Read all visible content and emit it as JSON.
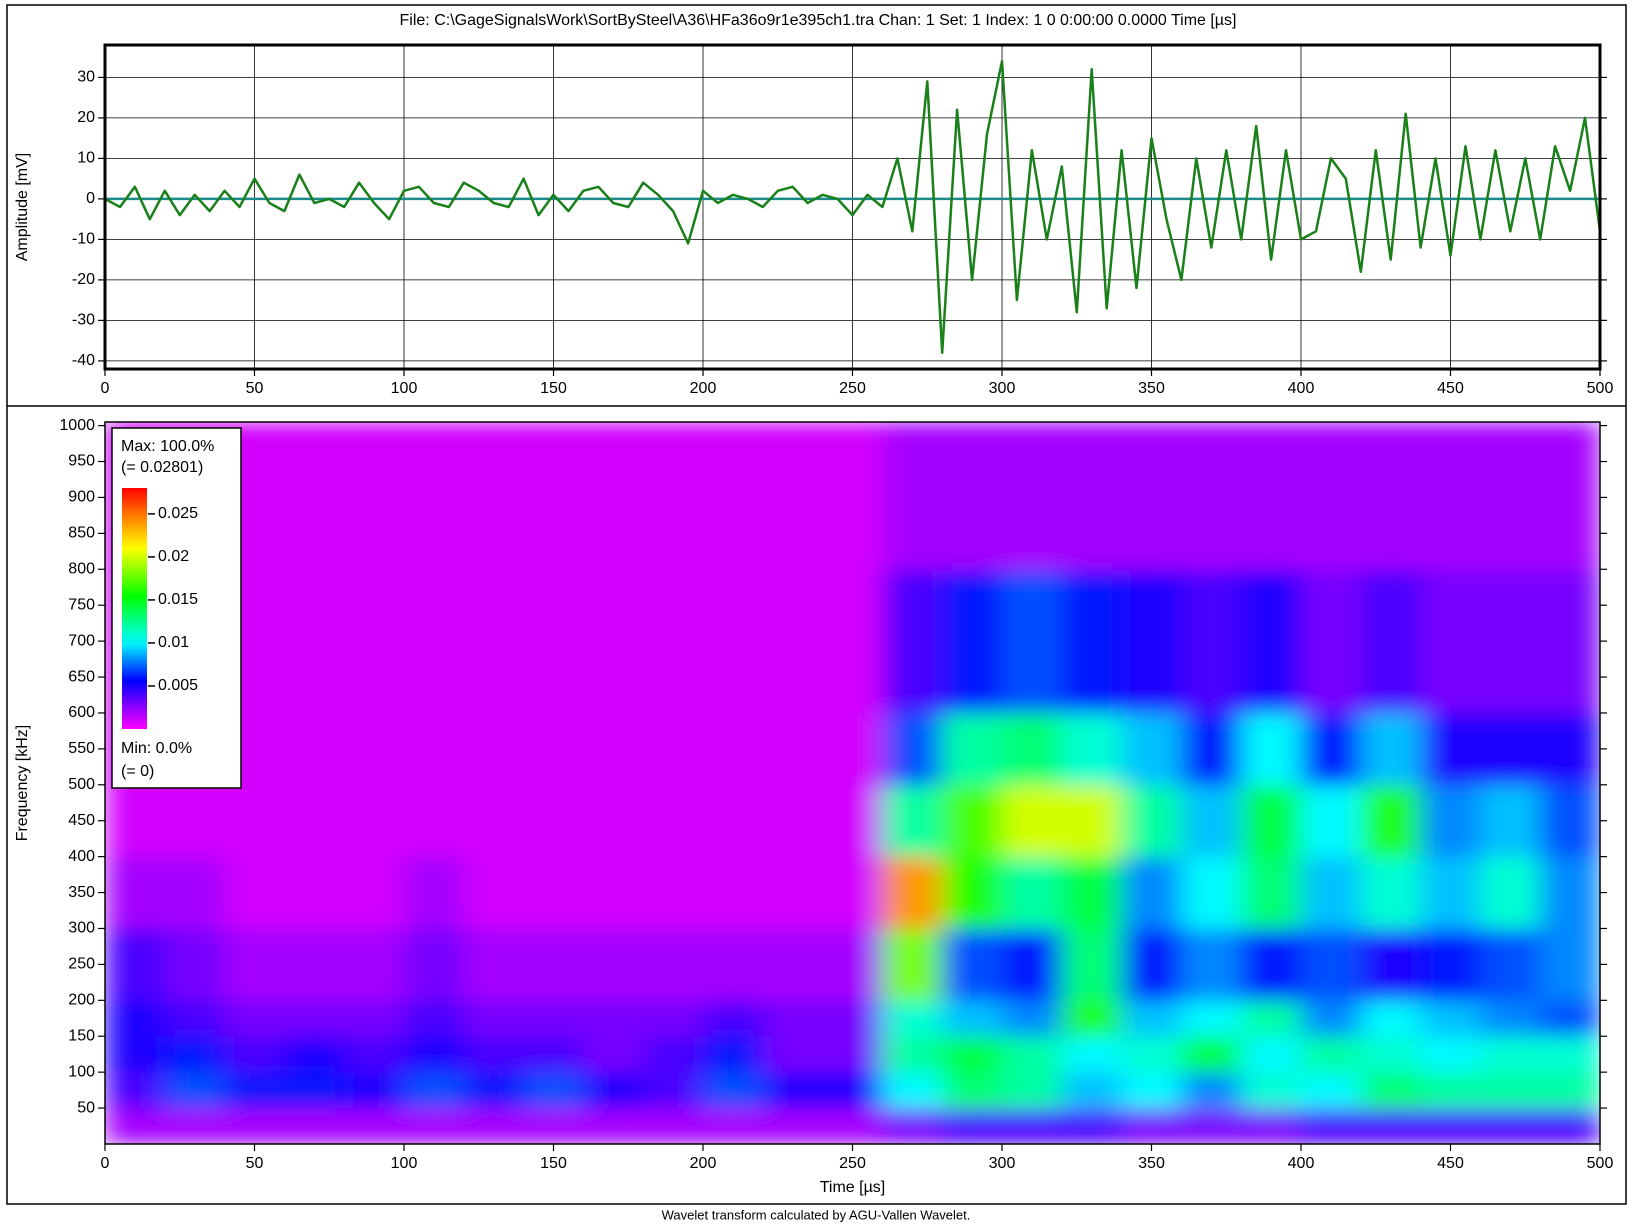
{
  "chart_data": [
    {
      "type": "line",
      "title": "File: C:\\GageSignalsWork\\SortBySteel\\A36\\HFa36o9r1e395ch1.tra  Chan: 1  Set: 1  Index: 1   0   0:00:00   0.0000  Time [µs]",
      "y_label": "Amplitude [mV]",
      "xlim": [
        0,
        500
      ],
      "ylim": [
        -42,
        38
      ],
      "xticks": [
        0,
        50,
        100,
        150,
        200,
        250,
        300,
        350,
        400,
        450,
        500
      ],
      "yticks": [
        -40,
        -30,
        -20,
        -10,
        0,
        10,
        20,
        30
      ],
      "grid": true,
      "color": "#1a801a",
      "x": [
        0,
        5,
        10,
        15,
        20,
        25,
        30,
        35,
        40,
        45,
        50,
        55,
        60,
        65,
        70,
        75,
        80,
        85,
        90,
        95,
        100,
        105,
        110,
        115,
        120,
        125,
        130,
        135,
        140,
        145,
        150,
        155,
        160,
        165,
        170,
        175,
        180,
        185,
        190,
        195,
        200,
        205,
        210,
        215,
        220,
        225,
        230,
        235,
        240,
        245,
        250,
        255,
        260,
        265,
        270,
        275,
        280,
        285,
        290,
        295,
        300,
        305,
        310,
        315,
        320,
        325,
        330,
        335,
        340,
        345,
        350,
        355,
        360,
        365,
        370,
        375,
        380,
        385,
        390,
        395,
        400,
        405,
        410,
        415,
        420,
        425,
        430,
        435,
        440,
        445,
        450,
        455,
        460,
        465,
        470,
        475,
        480,
        485,
        490,
        495,
        500
      ],
      "values": [
        0,
        -2,
        3,
        -5,
        2,
        -4,
        1,
        -3,
        2,
        -2,
        5,
        -1,
        -3,
        6,
        -1,
        0,
        -2,
        4,
        -1,
        -5,
        2,
        3,
        -1,
        -2,
        4,
        2,
        -1,
        -2,
        5,
        -4,
        1,
        -3,
        2,
        3,
        -1,
        -2,
        4,
        1,
        -3,
        -11,
        2,
        -1,
        1,
        0,
        -2,
        2,
        3,
        -1,
        1,
        0,
        -4,
        1,
        -2,
        10,
        -8,
        29,
        -38,
        22,
        -20,
        16,
        34,
        -25,
        12,
        -10,
        8,
        -28,
        32,
        -27,
        12,
        -22,
        15,
        -5,
        -20,
        10,
        -12,
        12,
        -10,
        18,
        -15,
        12,
        -10,
        -8,
        10,
        5,
        -18,
        12,
        -15,
        21,
        -12,
        10,
        -14,
        13,
        -10,
        12,
        -8,
        10,
        -10,
        13,
        2,
        20,
        -8
      ]
    },
    {
      "type": "heatmap",
      "x_label": "Time [µs]",
      "y_label": "Frequency [kHz]",
      "xlim": [
        0,
        500
      ],
      "ylim": [
        0,
        1005
      ],
      "xticks": [
        0,
        50,
        100,
        150,
        200,
        250,
        300,
        350,
        400,
        450,
        500
      ],
      "yticks": [
        50,
        100,
        150,
        200,
        250,
        300,
        350,
        400,
        450,
        500,
        550,
        600,
        650,
        700,
        750,
        800,
        850,
        900,
        950,
        1000
      ],
      "x_bins": [
        0,
        20,
        40,
        60,
        80,
        100,
        120,
        140,
        160,
        180,
        200,
        220,
        240,
        260,
        280,
        300,
        320,
        340,
        360,
        380,
        400,
        420,
        440,
        460,
        480,
        500
      ],
      "y_bins": [
        0,
        50,
        100,
        150,
        200,
        300,
        400,
        500,
        600,
        800,
        1005
      ],
      "z": [
        [
          0.002,
          0.002,
          0.002,
          0.002,
          0.002,
          0.002,
          0.002,
          0.002,
          0.002,
          0.002,
          0.002,
          0.002,
          0.002,
          0.003,
          0.004,
          0.004,
          0.004,
          0.003,
          0.003,
          0.003,
          0.004,
          0.004,
          0.004,
          0.004,
          0.004
        ],
        [
          0.004,
          0.007,
          0.006,
          0.006,
          0.005,
          0.007,
          0.006,
          0.007,
          0.005,
          0.004,
          0.007,
          0.005,
          0.005,
          0.01,
          0.013,
          0.012,
          0.009,
          0.01,
          0.008,
          0.011,
          0.01,
          0.013,
          0.012,
          0.012,
          0.012
        ],
        [
          0.005,
          0.006,
          0.004,
          0.005,
          0.004,
          0.005,
          0.004,
          0.004,
          0.003,
          0.004,
          0.006,
          0.003,
          0.003,
          0.012,
          0.014,
          0.012,
          0.01,
          0.011,
          0.014,
          0.01,
          0.012,
          0.011,
          0.01,
          0.011,
          0.011
        ],
        [
          0.005,
          0.004,
          0.003,
          0.003,
          0.003,
          0.004,
          0.003,
          0.003,
          0.003,
          0.003,
          0.004,
          0.003,
          0.003,
          0.011,
          0.009,
          0.008,
          0.016,
          0.009,
          0.01,
          0.012,
          0.008,
          0.01,
          0.009,
          0.008,
          0.007
        ],
        [
          0.004,
          0.003,
          0.002,
          0.002,
          0.002,
          0.003,
          0.002,
          0.002,
          0.002,
          0.002,
          0.002,
          0.002,
          0.002,
          0.018,
          0.007,
          0.006,
          0.013,
          0.006,
          0.008,
          0.006,
          0.007,
          0.005,
          0.006,
          0.007,
          0.008
        ],
        [
          0.002,
          0.002,
          0.001,
          0.001,
          0.001,
          0.002,
          0.001,
          0.001,
          0.001,
          0.001,
          0.001,
          0.001,
          0.001,
          0.024,
          0.016,
          0.012,
          0.014,
          0.008,
          0.01,
          0.013,
          0.009,
          0.011,
          0.009,
          0.011,
          0.008
        ],
        [
          0.001,
          0.001,
          0.001,
          0.001,
          0.001,
          0.001,
          0.001,
          0.001,
          0.001,
          0.001,
          0.001,
          0.001,
          0.001,
          0.012,
          0.017,
          0.02,
          0.02,
          0.012,
          0.009,
          0.014,
          0.01,
          0.016,
          0.008,
          0.009,
          0.007
        ],
        [
          0.001,
          0.001,
          0.001,
          0.001,
          0.001,
          0.001,
          0.001,
          0.001,
          0.001,
          0.001,
          0.001,
          0.001,
          0.001,
          0.007,
          0.012,
          0.013,
          0.011,
          0.009,
          0.006,
          0.01,
          0.006,
          0.009,
          0.005,
          0.005,
          0.005
        ],
        [
          0.001,
          0.001,
          0.001,
          0.001,
          0.001,
          0.001,
          0.001,
          0.001,
          0.001,
          0.001,
          0.001,
          0.001,
          0.001,
          0.004,
          0.006,
          0.007,
          0.006,
          0.005,
          0.004,
          0.005,
          0.003,
          0.004,
          0.003,
          0.003,
          0.003
        ],
        [
          0.001,
          0.001,
          0.001,
          0.001,
          0.001,
          0.001,
          0.001,
          0.001,
          0.001,
          0.001,
          0.001,
          0.001,
          0.001,
          0.002,
          0.002,
          0.002,
          0.002,
          0.002,
          0.002,
          0.002,
          0.002,
          0.002,
          0.002,
          0.002,
          0.002
        ]
      ],
      "colorbar": {
        "max_label": "Max: 100.0%",
        "max": {
          "value": 0.02801,
          "label": "(= 0.02801)"
        },
        "ticks": [
          0.005,
          0.01,
          0.015,
          0.02,
          0.025
        ],
        "min_label": "Min: 0.0%",
        "min": {
          "value": 0,
          "label": "(= 0)"
        }
      }
    }
  ],
  "caption": "Wavelet transform calculated by AGU-Vallen Wavelet."
}
